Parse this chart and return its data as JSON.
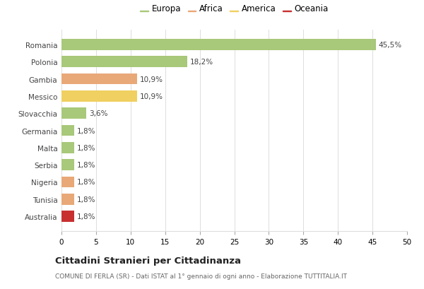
{
  "countries": [
    "Romania",
    "Polonia",
    "Gambia",
    "Messico",
    "Slovacchia",
    "Germania",
    "Malta",
    "Serbia",
    "Nigeria",
    "Tunisia",
    "Australia"
  ],
  "values": [
    45.5,
    18.2,
    10.9,
    10.9,
    3.6,
    1.8,
    1.8,
    1.8,
    1.8,
    1.8,
    1.8
  ],
  "labels": [
    "45,5%",
    "18,2%",
    "10,9%",
    "10,9%",
    "3,6%",
    "1,8%",
    "1,8%",
    "1,8%",
    "1,8%",
    "1,8%",
    "1,8%"
  ],
  "continents": [
    "Europa",
    "Europa",
    "Africa",
    "America",
    "Europa",
    "Europa",
    "Europa",
    "Europa",
    "Africa",
    "Africa",
    "Oceania"
  ],
  "colors": {
    "Europa": "#a8c87a",
    "Africa": "#e8a878",
    "America": "#f0d060",
    "Oceania": "#c83030"
  },
  "legend_order": [
    "Europa",
    "Africa",
    "America",
    "Oceania"
  ],
  "xlim": [
    0,
    50
  ],
  "xticks": [
    0,
    5,
    10,
    15,
    20,
    25,
    30,
    35,
    40,
    45,
    50
  ],
  "title": "Cittadini Stranieri per Cittadinanza",
  "subtitle": "COMUNE DI FERLA (SR) - Dati ISTAT al 1° gennaio di ogni anno - Elaborazione TUTTITALIA.IT",
  "bg_color": "#ffffff",
  "grid_color": "#dddddd"
}
